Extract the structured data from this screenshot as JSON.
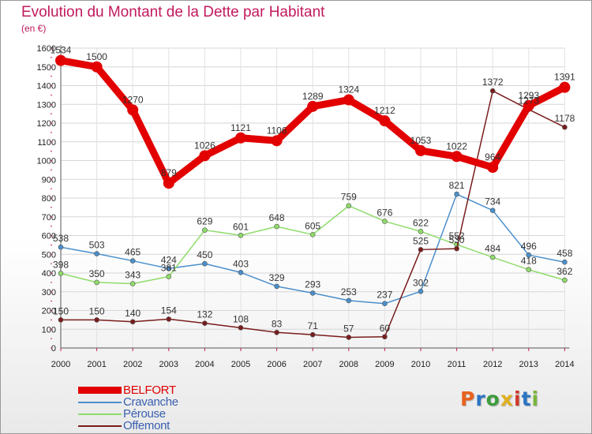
{
  "title": "Evolution du Montant de la Dette par Habitant",
  "subtitle": "(en €)",
  "logo": "Proxiti",
  "logo_colors": [
    "#e8621e",
    "#2a74c4",
    "#3d9c3d",
    "#e0b020",
    "#d03a2a",
    "#2a74c4",
    "#7ab53a"
  ],
  "chart_data": {
    "type": "line",
    "title": "Evolution du Montant de la Dette par Habitant",
    "subtitle": "(en €)",
    "x": [
      2000,
      2001,
      2002,
      2003,
      2004,
      2005,
      2006,
      2007,
      2008,
      2009,
      2010,
      2011,
      2012,
      2013,
      2014
    ],
    "ylim": [
      0,
      1600
    ],
    "yticks": [
      0,
      100,
      200,
      300,
      400,
      500,
      600,
      700,
      800,
      900,
      1000,
      1100,
      1200,
      1300,
      1400,
      1500,
      1600
    ],
    "grid": true,
    "legend_position": "bottom-left",
    "series": [
      {
        "name": "BELFORT",
        "color": "#e20000",
        "emphasis": true,
        "values": [
          1534,
          1500,
          1270,
          879,
          1026,
          1121,
          1106,
          1289,
          1324,
          1212,
          1053,
          1022,
          964,
          1293,
          1391
        ],
        "labels": [
          "1534",
          "1500",
          "1270",
          "879",
          "1026",
          "1121",
          "1106",
          "1289",
          "1324",
          "1212",
          "1053",
          "1022",
          "964",
          "1293",
          "1391"
        ]
      },
      {
        "name": "Cravanche",
        "color": "#4a8fcc",
        "values": [
          538,
          503,
          465,
          424,
          450,
          403,
          329,
          293,
          253,
          237,
          302,
          821,
          734,
          496,
          458
        ],
        "labels": [
          "538",
          "503",
          "465",
          "424",
          "450",
          "403",
          "329",
          "293",
          "253",
          "237",
          "302",
          "821",
          "734",
          "496",
          "458"
        ]
      },
      {
        "name": "Pérouse",
        "color": "#8fdc6a",
        "values": [
          398,
          350,
          343,
          381,
          629,
          601,
          648,
          605,
          759,
          676,
          622,
          552,
          484,
          418,
          362
        ],
        "labels": [
          "398",
          "350",
          "343",
          "381",
          "629",
          "601",
          "648",
          "605",
          "759",
          "676",
          "622",
          "552",
          "484",
          "418",
          "362"
        ]
      },
      {
        "name": "Offemont",
        "color": "#7a1c1c",
        "values": [
          150,
          150,
          140,
          154,
          132,
          108,
          83,
          71,
          57,
          60,
          525,
          530,
          1372,
          1273,
          1178
        ],
        "labels": [
          "150",
          "150",
          "140",
          "154",
          "132",
          "108",
          "83",
          "71",
          "57",
          "60",
          "525",
          "530",
          "1372",
          "1273",
          "1178"
        ]
      }
    ]
  }
}
